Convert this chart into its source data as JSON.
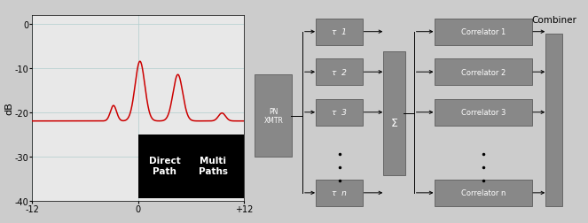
{
  "bg_color": "#cccccc",
  "plot_bg": "#e8e8e8",
  "grid_color": "#b0cece",
  "line_color": "#cc0000",
  "box_color": "#888888",
  "box_edge": "#666666",
  "plot_xlim": [
    -12,
    12
  ],
  "plot_ylim": [
    -40,
    2
  ],
  "plot_yticks": [
    0,
    -10,
    -20,
    -30,
    -40
  ],
  "plot_xtick_labels": [
    "-12",
    "0",
    "+12"
  ],
  "ylabel": "dB",
  "combiner_label": "Combiner",
  "pn_label": "PN\nXMTR",
  "tau_labels": [
    "τ  1",
    "τ  2",
    "τ  3",
    "τ  n"
  ],
  "corr_labels": [
    "Correlator 1",
    "Correlator 2",
    "Correlator 3",
    "Correlator n"
  ],
  "sum_symbol": "Σ",
  "direct_path": "Direct\nPath",
  "multi_paths": "Multi\nPaths"
}
